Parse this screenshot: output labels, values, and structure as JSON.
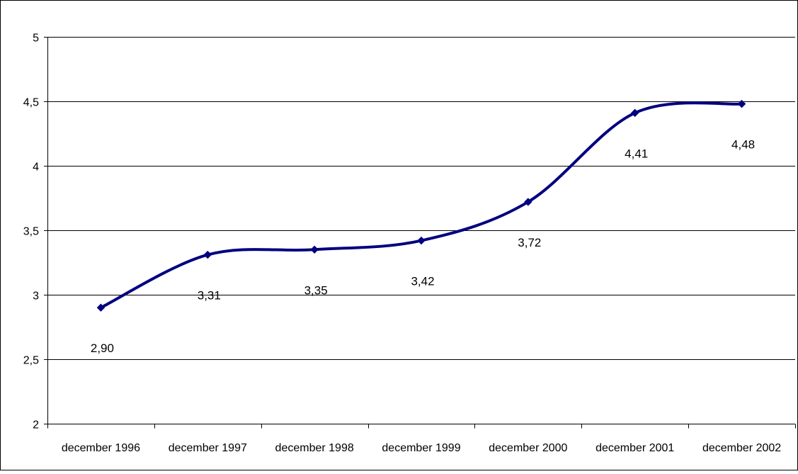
{
  "chart_data": {
    "type": "line",
    "title": "",
    "xlabel": "",
    "ylabel": "",
    "categories": [
      "december 1996",
      "december 1997",
      "december 1998",
      "december 1999",
      "december 2000",
      "december 2001",
      "december 2002"
    ],
    "series": [
      {
        "values": [
          2.9,
          3.31,
          3.35,
          3.42,
          3.72,
          4.41,
          4.48
        ],
        "data_labels": [
          "2,90",
          "3,31",
          "3,35",
          "3,42",
          "3,72",
          "4,41",
          "4,48"
        ]
      }
    ],
    "ylim": [
      2,
      5
    ],
    "yticks": [
      2,
      2.5,
      3,
      3.5,
      4,
      4.5,
      5
    ],
    "ytick_labels": [
      "2",
      "2,5",
      "3",
      "3,5",
      "4",
      "4,5",
      "5"
    ],
    "grid": "horizontal",
    "smooth": true,
    "marker": "diamond",
    "legend": "none",
    "colors": {
      "line": "#000080",
      "grid": "#000000",
      "text": "#000000",
      "background": "#ffffff"
    }
  }
}
